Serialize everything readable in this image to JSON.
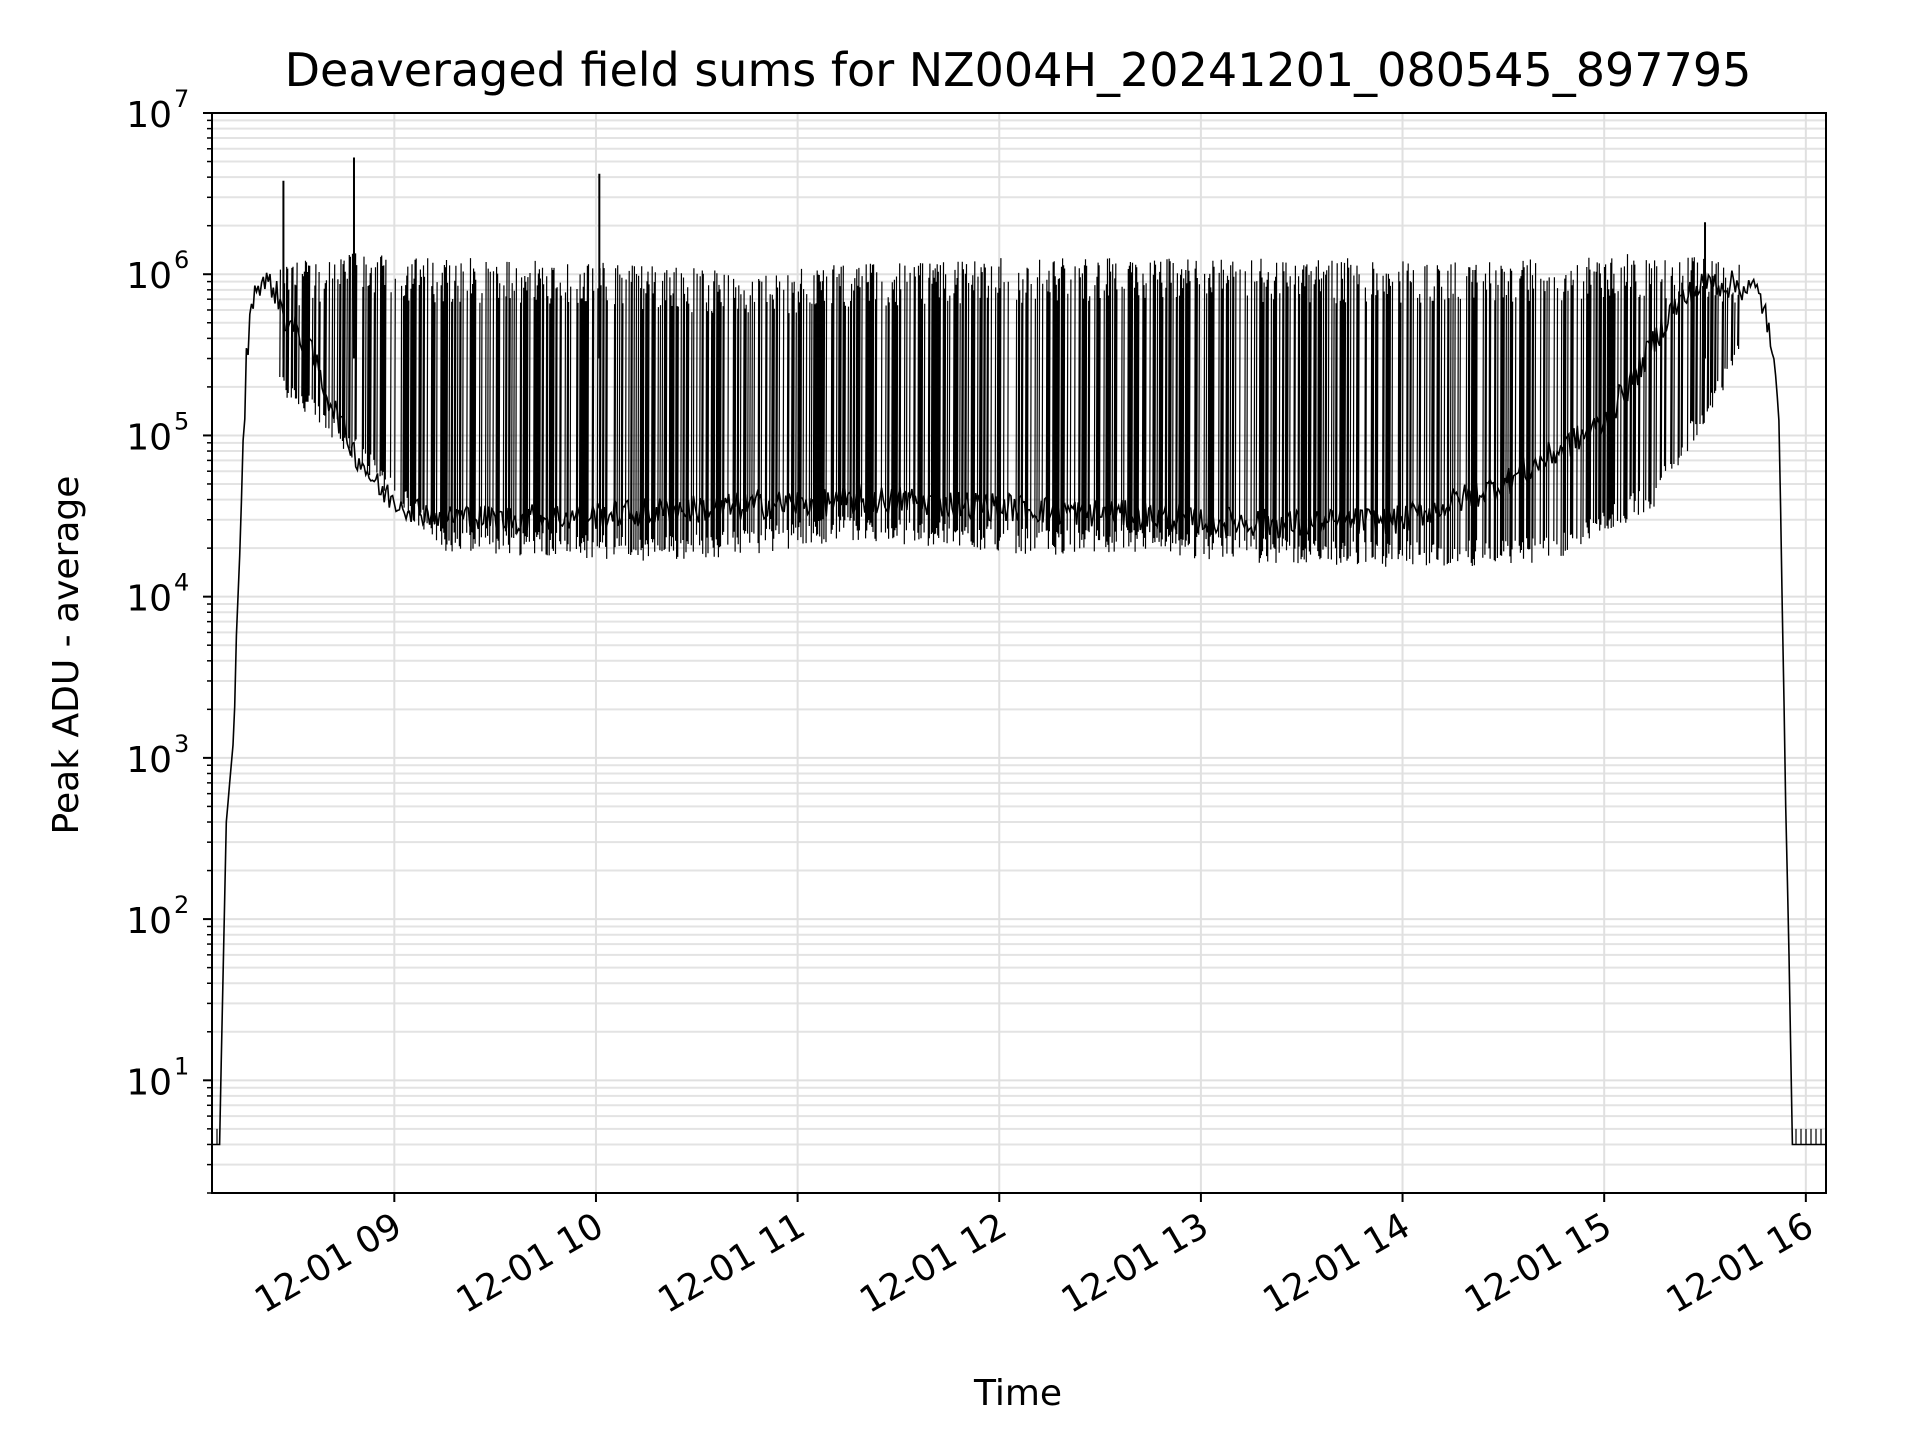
{
  "chart_data": {
    "type": "line",
    "title": "Deaveraged field sums for NZ004H_20241201_080545_897795",
    "xlabel": "Time",
    "ylabel": "Peak ADU - average",
    "yscale": "log",
    "ylim": [
      2,
      10000000
    ],
    "xlim": [
      "2024-12-01 08:05:45",
      "2024-12-01 16:06:00"
    ],
    "grid": true,
    "x_ticks": [
      {
        "label": "12-01 09",
        "t": "2024-12-01 09:00"
      },
      {
        "label": "12-01 10",
        "t": "2024-12-01 10:00"
      },
      {
        "label": "12-01 11",
        "t": "2024-12-01 11:00"
      },
      {
        "label": "12-01 12",
        "t": "2024-12-01 12:00"
      },
      {
        "label": "12-01 13",
        "t": "2024-12-01 13:00"
      },
      {
        "label": "12-01 14",
        "t": "2024-12-01 14:00"
      },
      {
        "label": "12-01 15",
        "t": "2024-12-01 15:00"
      },
      {
        "label": "12-01 16",
        "t": "2024-12-01 16:00"
      }
    ],
    "y_ticks": [
      {
        "base": "10",
        "exp": "1",
        "value": 10
      },
      {
        "base": "10",
        "exp": "2",
        "value": 100
      },
      {
        "base": "10",
        "exp": "3",
        "value": 1000
      },
      {
        "base": "10",
        "exp": "4",
        "value": 10000
      },
      {
        "base": "10",
        "exp": "5",
        "value": 100000
      },
      {
        "base": "10",
        "exp": "6",
        "value": 1000000
      },
      {
        "base": "10",
        "exp": "7",
        "value": 10000000
      }
    ],
    "series": [
      {
        "color": "#000000",
        "x": [
          "2024-12-01 08:05:45",
          "2024-12-01 08:08",
          "2024-12-01 08:09",
          "2024-12-01 08:10",
          "2024-12-01 08:12",
          "2024-12-01 08:14",
          "2024-12-01 08:16",
          "2024-12-01 08:18",
          "2024-12-01 08:20",
          "2024-12-01 08:24",
          "2024-12-01 08:28",
          "2024-12-01 08:32",
          "2024-12-01 08:36",
          "2024-12-01 08:40",
          "2024-12-01 08:44",
          "2024-12-01 08:48",
          "2024-12-01 08:52",
          "2024-12-01 08:56",
          "2024-12-01 09:00",
          "2024-12-01 09:06",
          "2024-12-01 09:15",
          "2024-12-01 09:30",
          "2024-12-01 10:00",
          "2024-12-01 10:30",
          "2024-12-01 11:00",
          "2024-12-01 11:30",
          "2024-12-01 12:00",
          "2024-12-01 12:30",
          "2024-12-01 13:00",
          "2024-12-01 13:30",
          "2024-12-01 14:00",
          "2024-12-01 14:30",
          "2024-12-01 15:00",
          "2024-12-01 15:10",
          "2024-12-01 15:20",
          "2024-12-01 15:30",
          "2024-12-01 15:40",
          "2024-12-01 15:45",
          "2024-12-01 15:48",
          "2024-12-01 15:50",
          "2024-12-01 15:52",
          "2024-12-01 15:53",
          "2024-12-01 15:54",
          "2024-12-01 15:55",
          "2024-12-01 15:56",
          "2024-12-01 15:57",
          "2024-12-01 16:06"
        ],
        "y": [
          4,
          4,
          40,
          400,
          1200,
          20000,
          300000,
          750000,
          900000,
          850000,
          500000,
          420000,
          300000,
          180000,
          120000,
          80000,
          60000,
          45000,
          40000,
          35000,
          32000,
          30000,
          32000,
          35000,
          38000,
          40000,
          36000,
          33000,
          30000,
          28000,
          30000,
          50000,
          120000,
          250000,
          600000,
          900000,
          850000,
          800000,
          600000,
          300000,
          150000,
          10000,
          500,
          60,
          4,
          4,
          4
        ]
      }
    ],
    "spike_envelope": {
      "x": [
        "2024-12-01 08:25",
        "2024-12-01 08:45",
        "2024-12-01 09:15",
        "2024-12-01 09:45",
        "2024-12-01 10:15",
        "2024-12-01 10:45",
        "2024-12-01 11:15",
        "2024-12-01 11:45",
        "2024-12-01 12:15",
        "2024-12-01 12:45",
        "2024-12-01 13:15",
        "2024-12-01 13:45",
        "2024-12-01 14:15",
        "2024-12-01 14:45",
        "2024-12-01 15:15",
        "2024-12-01 15:40"
      ],
      "y_high": [
        1100000,
        1300000,
        1200000,
        1200000,
        1100000,
        1000000,
        1100000,
        1200000,
        1200000,
        1200000,
        1200000,
        1200000,
        1150000,
        1200000,
        1300000,
        1200000
      ],
      "y_low": [
        200000,
        90000,
        20000,
        20000,
        18000,
        20000,
        25000,
        22000,
        20000,
        20000,
        18000,
        17000,
        17000,
        18000,
        40000,
        300000
      ]
    },
    "isolated_spikes": [
      {
        "t": "2024-12-01 08:27",
        "y": 3800000
      },
      {
        "t": "2024-12-01 08:48",
        "y": 5300000
      },
      {
        "t": "2024-12-01 10:01",
        "y": 4200000
      },
      {
        "t": "2024-12-01 15:30",
        "y": 2100000
      }
    ]
  }
}
